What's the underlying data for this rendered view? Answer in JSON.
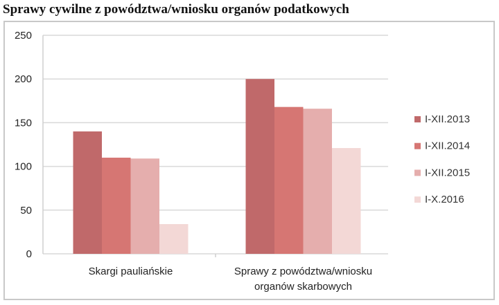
{
  "chart_data": {
    "type": "bar",
    "title": "Sprawy cywilne z powództwa/wniosku organów podatkowych",
    "categories": [
      [
        "Skargi pauliańskie"
      ],
      [
        "Sprawy z powództwa/wniosku",
        "organów skarbowych"
      ]
    ],
    "series": [
      {
        "name": "I-XII.2013",
        "values": [
          140,
          200
        ],
        "color": "#C0696A"
      },
      {
        "name": "I-XII.2014",
        "values": [
          110,
          168
        ],
        "color": "#D67673"
      },
      {
        "name": "I-XII.2015",
        "values": [
          109,
          166
        ],
        "color": "#E5AEAD"
      },
      {
        "name": "I-X.2016",
        "values": [
          34,
          121
        ],
        "color": "#F3D8D6"
      }
    ],
    "ylim": [
      0,
      250
    ],
    "yticks": [
      0,
      50,
      100,
      150,
      200,
      250
    ],
    "xlabel": "",
    "ylabel": "",
    "grid": true,
    "legend": "right"
  }
}
